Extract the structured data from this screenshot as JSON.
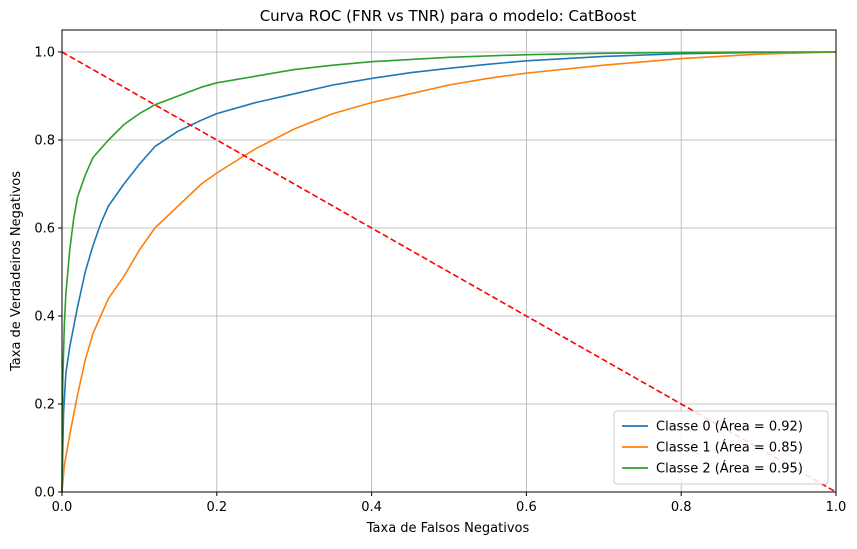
{
  "chart_data": {
    "type": "line",
    "title": "Curva ROC (FNR vs TNR) para o modelo: CatBoost",
    "xlabel": "Taxa de Falsos Negativos",
    "ylabel": "Taxa de Verdadeiros Negativos",
    "xlim": [
      0,
      1
    ],
    "ylim": [
      0,
      1.05
    ],
    "grid": true,
    "legend_position": "lower right",
    "x_ticks": [
      "0.0",
      "0.2",
      "0.4",
      "0.6",
      "0.8",
      "1.0"
    ],
    "y_ticks": [
      "0.0",
      "0.2",
      "0.4",
      "0.6",
      "0.8",
      "1.0"
    ],
    "series": [
      {
        "name": "Classe 0 (Área = 0.92)",
        "color": "#1f77b4",
        "points": [
          [
            0,
            0
          ],
          [
            0.002,
            0.18
          ],
          [
            0.005,
            0.27
          ],
          [
            0.01,
            0.33
          ],
          [
            0.02,
            0.42
          ],
          [
            0.03,
            0.5
          ],
          [
            0.04,
            0.56
          ],
          [
            0.05,
            0.61
          ],
          [
            0.06,
            0.65
          ],
          [
            0.08,
            0.7
          ],
          [
            0.1,
            0.745
          ],
          [
            0.12,
            0.785
          ],
          [
            0.15,
            0.82
          ],
          [
            0.18,
            0.845
          ],
          [
            0.2,
            0.86
          ],
          [
            0.25,
            0.885
          ],
          [
            0.3,
            0.905
          ],
          [
            0.35,
            0.925
          ],
          [
            0.4,
            0.94
          ],
          [
            0.45,
            0.953
          ],
          [
            0.5,
            0.963
          ],
          [
            0.55,
            0.972
          ],
          [
            0.6,
            0.98
          ],
          [
            0.7,
            0.99
          ],
          [
            0.8,
            0.996
          ],
          [
            0.9,
            0.999
          ],
          [
            1.0,
            1.0
          ]
        ]
      },
      {
        "name": "Classe 1 (Área = 0.85)",
        "color": "#ff7f0e",
        "points": [
          [
            0,
            0
          ],
          [
            0.003,
            0.06
          ],
          [
            0.01,
            0.13
          ],
          [
            0.02,
            0.22
          ],
          [
            0.03,
            0.3
          ],
          [
            0.04,
            0.36
          ],
          [
            0.05,
            0.4
          ],
          [
            0.06,
            0.44
          ],
          [
            0.08,
            0.49
          ],
          [
            0.1,
            0.55
          ],
          [
            0.12,
            0.6
          ],
          [
            0.15,
            0.65
          ],
          [
            0.18,
            0.7
          ],
          [
            0.2,
            0.725
          ],
          [
            0.25,
            0.78
          ],
          [
            0.3,
            0.825
          ],
          [
            0.35,
            0.86
          ],
          [
            0.4,
            0.885
          ],
          [
            0.45,
            0.905
          ],
          [
            0.5,
            0.925
          ],
          [
            0.55,
            0.94
          ],
          [
            0.6,
            0.952
          ],
          [
            0.7,
            0.97
          ],
          [
            0.8,
            0.985
          ],
          [
            0.9,
            0.995
          ],
          [
            1.0,
            1.0
          ]
        ]
      },
      {
        "name": "Classe 2 (Área = 0.95)",
        "color": "#2ca02c",
        "points": [
          [
            0,
            0
          ],
          [
            0.001,
            0.25
          ],
          [
            0.003,
            0.38
          ],
          [
            0.005,
            0.45
          ],
          [
            0.01,
            0.55
          ],
          [
            0.015,
            0.62
          ],
          [
            0.02,
            0.67
          ],
          [
            0.03,
            0.72
          ],
          [
            0.04,
            0.76
          ],
          [
            0.05,
            0.78
          ],
          [
            0.06,
            0.8
          ],
          [
            0.08,
            0.835
          ],
          [
            0.1,
            0.86
          ],
          [
            0.12,
            0.88
          ],
          [
            0.15,
            0.9
          ],
          [
            0.18,
            0.92
          ],
          [
            0.2,
            0.93
          ],
          [
            0.25,
            0.945
          ],
          [
            0.3,
            0.96
          ],
          [
            0.35,
            0.97
          ],
          [
            0.4,
            0.978
          ],
          [
            0.5,
            0.988
          ],
          [
            0.6,
            0.994
          ],
          [
            0.7,
            0.997
          ],
          [
            0.8,
            0.999
          ],
          [
            0.9,
            1.0
          ],
          [
            1.0,
            1.0
          ]
        ]
      },
      {
        "name": "",
        "color": "#ff0000",
        "dashed": true,
        "points": [
          [
            0,
            1
          ],
          [
            1,
            0
          ]
        ]
      }
    ]
  }
}
